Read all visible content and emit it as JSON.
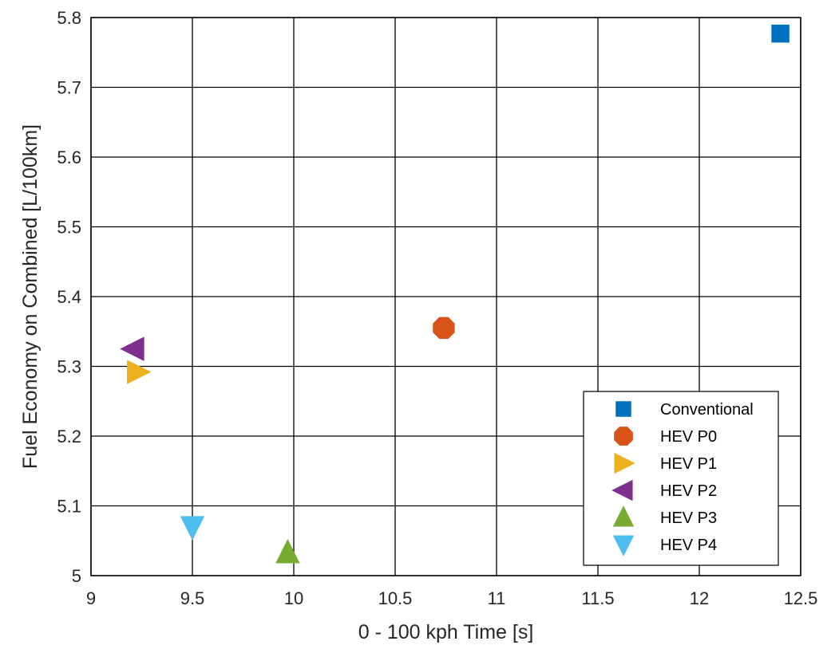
{
  "chart_data": {
    "type": "scatter",
    "xlabel": "0 - 100 kph Time [s]",
    "ylabel": "Fuel Economy on Combined [L/100km]",
    "xlim": [
      9,
      12.5
    ],
    "ylim": [
      5,
      5.8
    ],
    "xticks": [
      "9",
      "9.5",
      "10",
      "10.5",
      "11",
      "11.5",
      "12",
      "12.5"
    ],
    "yticks": [
      "5",
      "5.1",
      "5.2",
      "5.3",
      "5.4",
      "5.5",
      "5.6",
      "5.7",
      "5.8"
    ],
    "grid": true,
    "legend_position": "bottom-right",
    "series": [
      {
        "name": "Conventional",
        "marker": "square",
        "color": "#0072BD",
        "x": 12.4,
        "y": 5.777
      },
      {
        "name": "HEV P0",
        "marker": "octagon",
        "color": "#D95319",
        "x": 10.74,
        "y": 5.355
      },
      {
        "name": "HEV P1",
        "marker": "triangle-right",
        "color": "#EDB120",
        "x": 9.23,
        "y": 5.292
      },
      {
        "name": "HEV P2",
        "marker": "triangle-left",
        "color": "#7E2F8E",
        "x": 9.21,
        "y": 5.325
      },
      {
        "name": "HEV P3",
        "marker": "triangle-up",
        "color": "#77AC30",
        "x": 9.97,
        "y": 5.033
      },
      {
        "name": "HEV P4",
        "marker": "triangle-down",
        "color": "#4DBEEE",
        "x": 9.5,
        "y": 5.07
      }
    ]
  }
}
